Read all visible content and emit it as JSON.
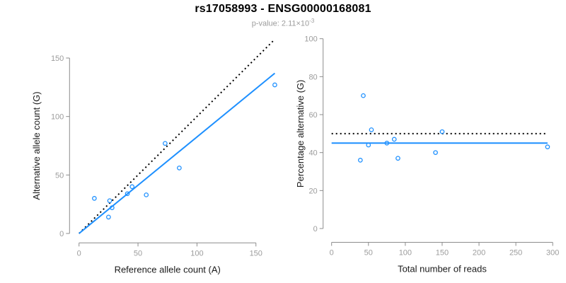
{
  "header": {
    "title": "rs17058993 - ENSG00000168081",
    "pvalue_base": "p-value: 2.11×10",
    "pvalue_exponent": "-3"
  },
  "colors": {
    "accent_blue": "#1E90FF",
    "line_black": "#000000",
    "axis_gray": "#8C8C8C",
    "muted_text_gray": "#9C9C9C",
    "title_black": "#000000",
    "background": "#FFFFFF"
  },
  "chart_data": [
    {
      "type": "scatter",
      "name": "allele-counts-panel",
      "xlabel": "Reference allele count (A)",
      "ylabel": "Alternative allele count (G)",
      "xlim": [
        0,
        166
      ],
      "ylim": [
        0,
        165
      ],
      "xticks": [
        0,
        50,
        100,
        150
      ],
      "yticks": [
        0,
        50,
        100,
        150
      ],
      "point_style": "open-circle",
      "points": [
        [
          13,
          30
        ],
        [
          25,
          14
        ],
        [
          26,
          28
        ],
        [
          28,
          22
        ],
        [
          41,
          34
        ],
        [
          45,
          40
        ],
        [
          57,
          33
        ],
        [
          73,
          77
        ],
        [
          85,
          56
        ],
        [
          166,
          127
        ]
      ],
      "lines": [
        {
          "name": "identity",
          "style": "dotted",
          "color": "#000000",
          "x1": 0,
          "y1": 0,
          "x2": 165,
          "y2": 165
        },
        {
          "name": "fit",
          "style": "solid",
          "color": "#1E90FF",
          "x1": 0,
          "y1": 0,
          "x2": 166,
          "y2": 137
        }
      ]
    },
    {
      "type": "scatter",
      "name": "percentage-panel",
      "xlabel": "Total number of reads",
      "ylabel": "Percentage alternative (G)",
      "xlim": [
        0,
        300
      ],
      "ylim": [
        0,
        100
      ],
      "xticks": [
        0,
        50,
        100,
        150,
        200,
        250,
        300
      ],
      "yticks": [
        0,
        20,
        40,
        60,
        80,
        100
      ],
      "point_style": "open-circle",
      "points": [
        [
          43,
          70
        ],
        [
          39,
          36
        ],
        [
          54,
          52
        ],
        [
          50,
          44
        ],
        [
          75,
          45
        ],
        [
          85,
          47
        ],
        [
          90,
          37
        ],
        [
          150,
          51
        ],
        [
          141,
          40
        ],
        [
          293,
          43
        ]
      ],
      "lines": [
        {
          "name": "expected-50pct",
          "style": "dotted",
          "color": "#000000",
          "x1": 0,
          "y1": 50,
          "x2": 293,
          "y2": 50
        },
        {
          "name": "observed-mean",
          "style": "solid",
          "color": "#1E90FF",
          "x1": 0,
          "y1": 45,
          "x2": 293,
          "y2": 45
        }
      ]
    }
  ]
}
